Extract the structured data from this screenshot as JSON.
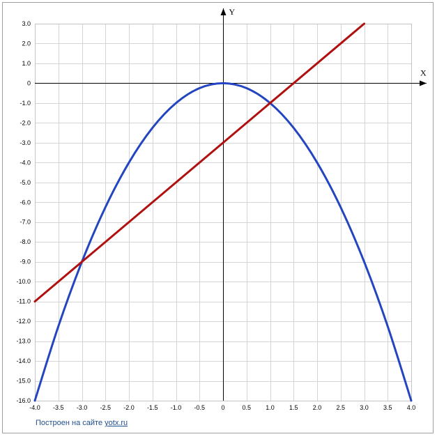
{
  "chart_data": {
    "type": "line",
    "title": "",
    "xlabel": "X",
    "ylabel": "Y",
    "xlim": [
      -4.0,
      4.0
    ],
    "ylim": [
      -16.0,
      3.0
    ],
    "x_ticks": [
      "-4.0",
      "-3.5",
      "-3.0",
      "-2.5",
      "-2.0",
      "-1.5",
      "-1.0",
      "-0.5",
      "0",
      "0.5",
      "1.0",
      "1.5",
      "2.0",
      "2.5",
      "3.0",
      "3.5",
      "4.0"
    ],
    "y_ticks": [
      "3.0",
      "2.0",
      "1.0",
      "0",
      "-1.0",
      "-2.0",
      "-3.0",
      "-4.0",
      "-5.0",
      "-6.0",
      "-7.0",
      "-8.0",
      "-9.0",
      "-10.0",
      "-11.0",
      "-12.0",
      "-13.0",
      "-14.0",
      "-15.0",
      "-16.0"
    ],
    "grid": true,
    "series": [
      {
        "color": "#2345c0",
        "x": [
          -4.0,
          -3.5,
          -3.0,
          -2.5,
          -2.0,
          -1.5,
          -1.0,
          -0.5,
          0,
          0.5,
          1.0,
          1.5,
          2.0,
          2.5,
          3.0,
          3.5,
          4.0
        ],
        "y": [
          -16.0,
          -12.25,
          -9.0,
          -6.25,
          -4.0,
          -2.25,
          -1.0,
          -0.25,
          0,
          -0.25,
          -1.0,
          -2.25,
          -4.0,
          -6.25,
          -9.0,
          -12.25,
          -16.0
        ]
      },
      {
        "color": "#b01010",
        "x": [
          -4.0,
          3.0
        ],
        "y": [
          -11.0,
          3.0
        ]
      }
    ]
  },
  "credit": {
    "prefix": "Построен на сайте ",
    "link": "yotx.ru"
  }
}
